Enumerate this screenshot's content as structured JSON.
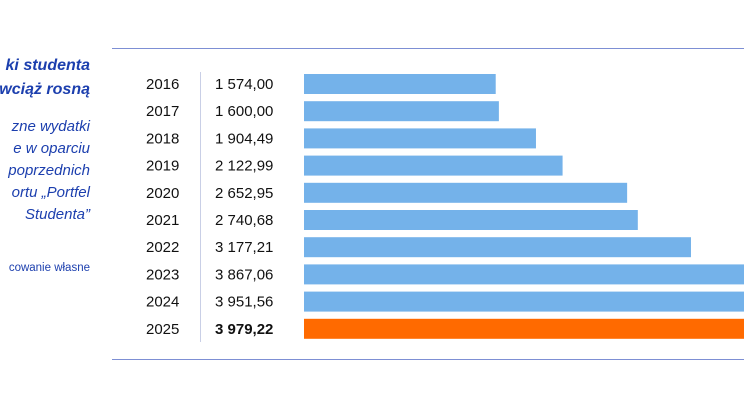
{
  "text": {
    "title_lines": [
      "ki studenta",
      "wciąż rosną"
    ],
    "desc_lines": [
      "zne wydatki",
      "e w oparciu",
      "poprzednich",
      "ortu „Portfel",
      "Studenta”"
    ],
    "source": "cowanie własne"
  },
  "colors": {
    "accent_text": "#1c3fae",
    "bar": "#74b2ea",
    "bar_highlight": "#ff6a00",
    "rule": "#7d8fd4"
  },
  "chart_data": {
    "type": "bar",
    "orientation": "horizontal",
    "categories": [
      "2016",
      "2017",
      "2018",
      "2019",
      "2020",
      "2021",
      "2022",
      "2023",
      "2024",
      "2025"
    ],
    "values": [
      1574.0,
      1600.0,
      1904.49,
      2122.99,
      2652.95,
      2740.68,
      3177.21,
      3867.06,
      3951.56,
      3979.22
    ],
    "value_labels": [
      "1 574,00",
      "1 600,00",
      "1 904,49",
      "2 122,99",
      "2 652,95",
      "2 740,68",
      "3 177,21",
      "3 867,06",
      "3 951,56",
      "3 979,22"
    ],
    "highlight_index": 9,
    "grid": false,
    "legend": "none"
  }
}
